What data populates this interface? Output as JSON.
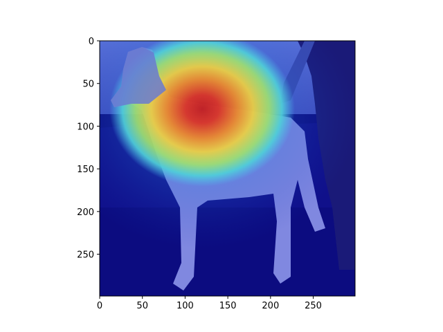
{
  "chart_data": {
    "type": "heatmap",
    "description": "Grad-CAM style attention heatmap (jet colormap) overlaid on a black-and-white photo of a shaggy dog standing in profile on a leash held by a person on the right.",
    "title": "",
    "xlabel": "",
    "ylabel": "",
    "xlim": [
      0,
      299
    ],
    "ylim": [
      299,
      0
    ],
    "x_ticks": [
      0,
      50,
      100,
      150,
      200,
      250
    ],
    "y_ticks": [
      0,
      50,
      100,
      150,
      200,
      250
    ],
    "colormap": "jet",
    "hotspot": {
      "center_x": 120,
      "center_y": 80,
      "radius_x": 70,
      "radius_y": 55,
      "peak": 1.0
    },
    "colors": {
      "background_overlay": "#0a0a8c",
      "hot": "#d42020",
      "warm": "#e8d040",
      "cool": "#50c8e0"
    }
  }
}
